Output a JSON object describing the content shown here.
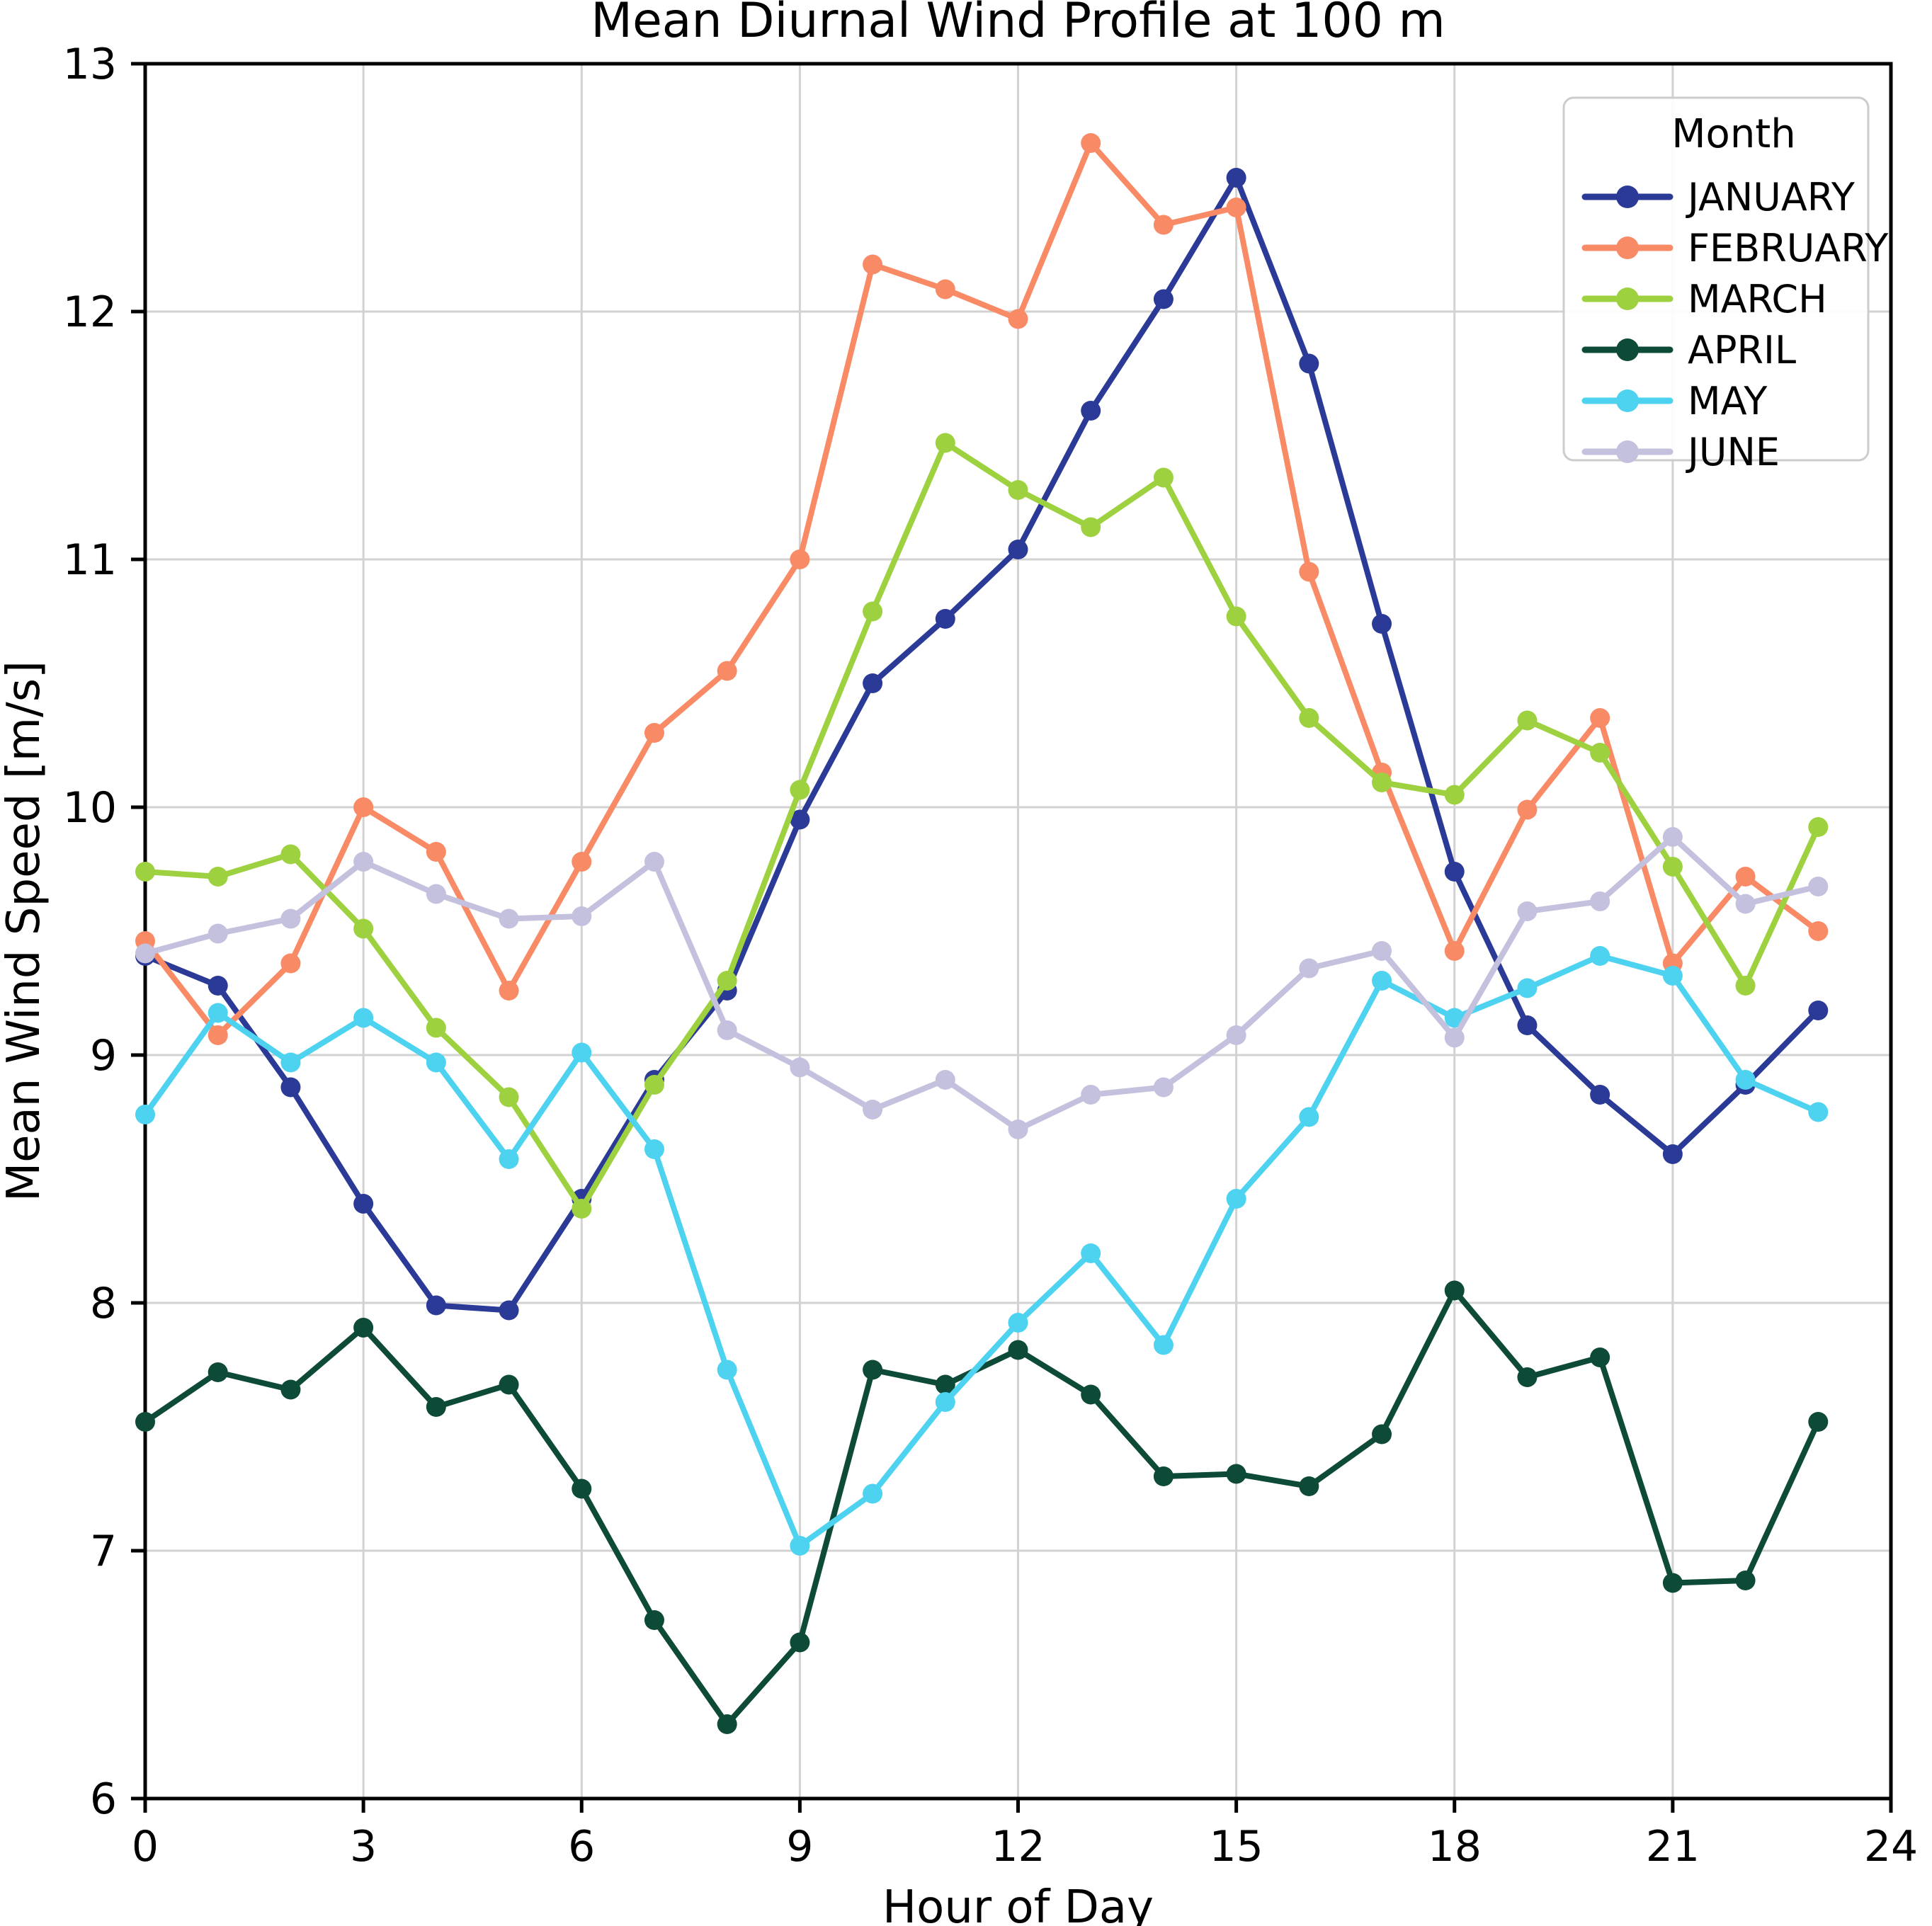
{
  "chart_data": {
    "type": "line",
    "title": "Mean Diurnal Wind Profile at 100 m",
    "xlabel": "Hour of Day",
    "ylabel": "Mean Wind Speed [m/s]",
    "xlim": [
      0,
      24
    ],
    "ylim": [
      6,
      13
    ],
    "x_ticks": [
      0,
      3,
      6,
      9,
      12,
      15,
      18,
      21,
      24
    ],
    "y_ticks": [
      6,
      7,
      8,
      9,
      10,
      11,
      12,
      13
    ],
    "grid": true,
    "legend_title": "Month",
    "legend_position": "upper right",
    "x": [
      0,
      1,
      2,
      3,
      4,
      5,
      6,
      7,
      8,
      9,
      10,
      11,
      12,
      13,
      14,
      15,
      16,
      17,
      18,
      19,
      20,
      21,
      22,
      23
    ],
    "series": [
      {
        "name": "JANUARY",
        "color": "#2b3a97",
        "values": [
          9.4,
          9.28,
          8.87,
          8.4,
          7.99,
          7.97,
          8.42,
          8.9,
          9.26,
          9.95,
          10.5,
          10.76,
          11.04,
          11.6,
          12.05,
          12.54,
          11.79,
          10.74,
          9.74,
          9.12,
          8.84,
          8.6,
          8.88,
          9.18
        ]
      },
      {
        "name": "FEBRUARY",
        "color": "#f98a66",
        "values": [
          9.46,
          9.08,
          9.37,
          10.0,
          9.82,
          9.26,
          9.78,
          10.3,
          10.55,
          11.0,
          12.19,
          12.09,
          11.97,
          12.68,
          12.35,
          12.42,
          10.95,
          10.14,
          9.42,
          9.99,
          10.36,
          9.37,
          9.72,
          9.5
        ]
      },
      {
        "name": "MARCH",
        "color": "#9ed13f",
        "values": [
          9.74,
          9.72,
          9.81,
          9.51,
          9.11,
          8.83,
          8.38,
          8.88,
          9.3,
          10.07,
          10.79,
          11.47,
          11.28,
          11.13,
          11.33,
          10.77,
          10.36,
          10.1,
          10.05,
          10.35,
          10.22,
          9.76,
          9.28,
          9.92
        ]
      },
      {
        "name": "APRIL",
        "color": "#0d4a38",
        "values": [
          7.52,
          7.72,
          7.65,
          7.9,
          7.58,
          7.67,
          7.25,
          6.72,
          6.3,
          6.63,
          7.73,
          7.67,
          7.81,
          7.63,
          7.3,
          7.31,
          7.26,
          7.47,
          8.05,
          7.7,
          7.78,
          6.87,
          6.88,
          7.52
        ]
      },
      {
        "name": "MAY",
        "color": "#4dd2f0",
        "values": [
          8.76,
          9.17,
          8.97,
          9.15,
          8.97,
          8.58,
          9.01,
          8.62,
          7.73,
          7.02,
          7.23,
          7.6,
          7.92,
          8.2,
          7.83,
          8.42,
          8.75,
          9.3,
          9.15,
          9.27,
          9.4,
          9.32,
          8.9,
          8.77
        ]
      },
      {
        "name": "JUNE",
        "color": "#c3c1dd",
        "values": [
          9.41,
          9.49,
          9.55,
          9.78,
          9.65,
          9.55,
          9.56,
          9.78,
          9.1,
          8.95,
          8.78,
          8.9,
          8.7,
          8.84,
          8.87,
          9.08,
          9.35,
          9.42,
          9.07,
          9.58,
          9.62,
          9.88,
          9.61,
          9.68
        ]
      }
    ],
    "style": {
      "grid_color": "#d2d2d2",
      "spine_color": "#000000",
      "text_color": "#000000",
      "background": "#ffffff",
      "legend_border": "#cccccc"
    }
  }
}
